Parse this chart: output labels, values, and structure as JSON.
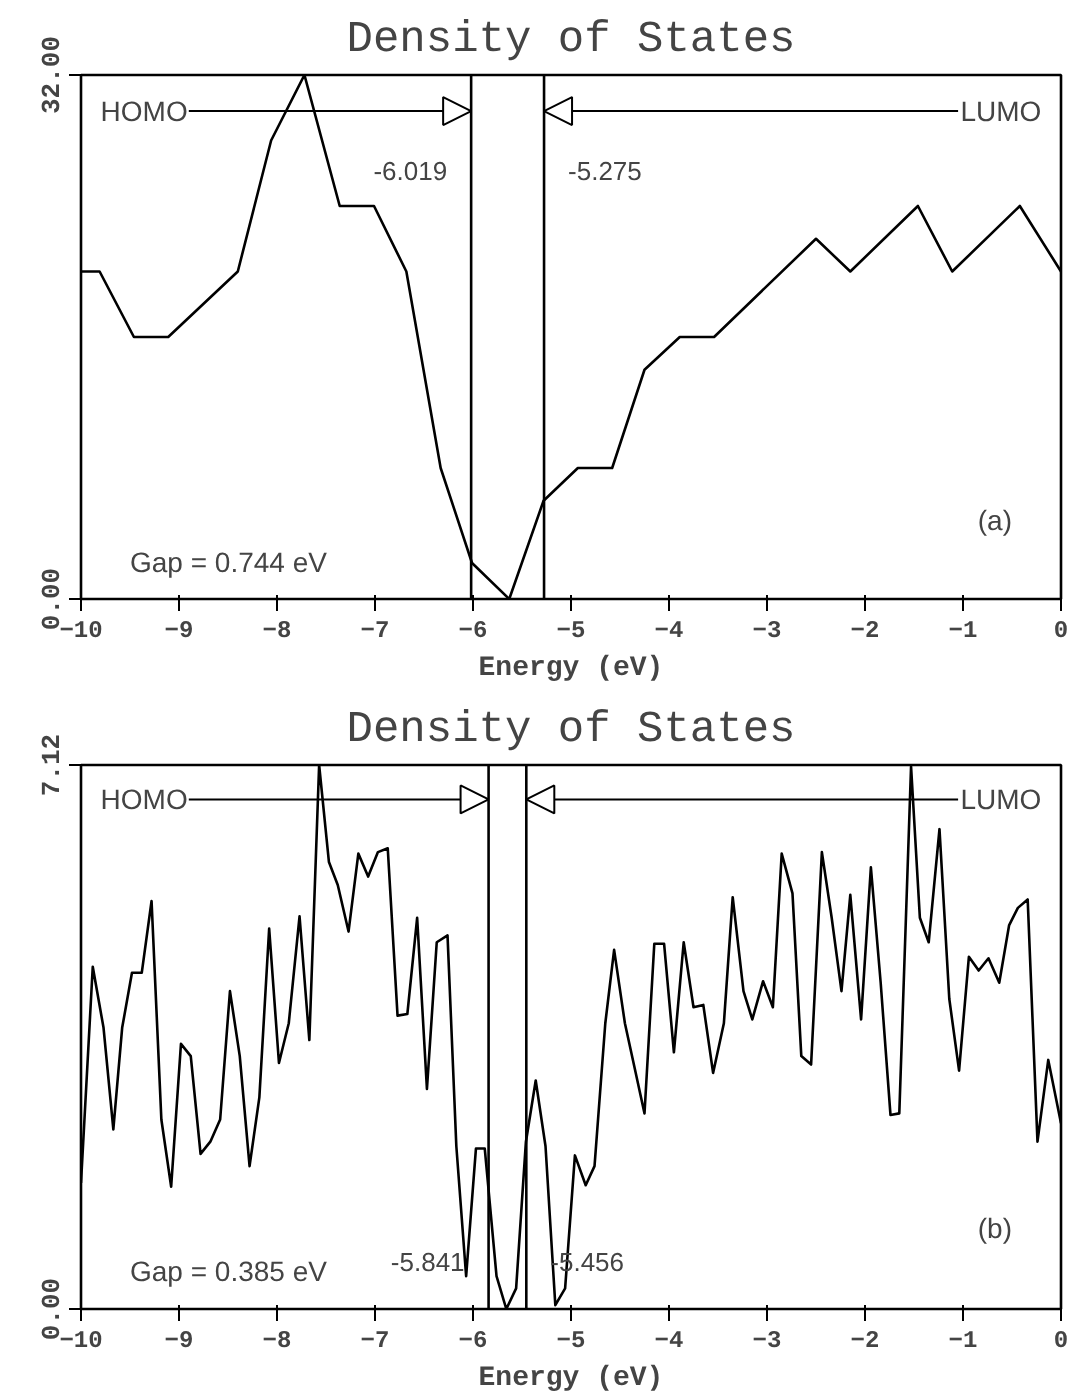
{
  "chart_data": [
    {
      "type": "line",
      "title": "Density of States",
      "xlabel": "Energy (eV)",
      "x": [
        -10,
        -9.81,
        -9.46,
        -9.11,
        -8.4,
        -8.06,
        -7.72,
        -7.36,
        -7.01,
        -6.68,
        -6.33,
        -6.01,
        -5.63,
        -5.28,
        -4.93,
        -4.58,
        -4.25,
        -3.89,
        -3.54,
        -2.5,
        -2.15,
        -1.46,
        -1.11,
        -0.42,
        0
      ],
      "series": [
        {
          "color": "#000000",
          "values": [
            20,
            20,
            16,
            16,
            20,
            28,
            32,
            24,
            24,
            20,
            8,
            2.2,
            0,
            6,
            8,
            8,
            14,
            16,
            16,
            22,
            20,
            24,
            20,
            24,
            20
          ]
        }
      ],
      "xlim": [
        -10,
        0
      ],
      "xticks": [
        -10,
        -9,
        -8,
        -7,
        -6,
        -5,
        -4,
        -3,
        -2,
        -1,
        0
      ],
      "ylim": [
        0,
        32
      ],
      "yticks": [
        {
          "value": 0,
          "label": "0.00"
        },
        {
          "value": 32,
          "label": "32.00"
        }
      ],
      "ref_lines": [
        {
          "axis": "x",
          "value": -6.019,
          "label": "-6.019"
        },
        {
          "axis": "x",
          "value": -5.275,
          "label": "-5.275"
        }
      ],
      "annotations": [
        {
          "text": "HOMO",
          "x": -6.019,
          "y": 29.8
        },
        {
          "text": "LUMO",
          "x": -5.275,
          "y": 29.8
        },
        "Gap = 0.744 eV",
        "(a)"
      ],
      "grid": false,
      "marker": "none",
      "line_style": "solid"
    },
    {
      "type": "line",
      "title": "Density of States",
      "xlabel": "Energy (eV)",
      "x": [
        -10,
        -9.88,
        -9.77,
        -9.67,
        -9.58,
        -9.48,
        -9.38,
        -9.28,
        -9.18,
        -9.08,
        -8.98,
        -8.88,
        -8.78,
        -8.68,
        -8.58,
        -8.48,
        -8.38,
        -8.28,
        -8.18,
        -8.08,
        -7.98,
        -7.88,
        -7.77,
        -7.67,
        -7.57,
        -7.47,
        -7.38,
        -7.27,
        -7.17,
        -7.07,
        -6.97,
        -6.87,
        -6.77,
        -6.67,
        -6.57,
        -6.47,
        -6.37,
        -6.26,
        -6.17,
        -6.07,
        -5.97,
        -5.88,
        -5.76,
        -5.66,
        -5.56,
        -5.46,
        -5.36,
        -5.26,
        -5.16,
        -5.06,
        -4.96,
        -4.85,
        -4.76,
        -4.65,
        -4.56,
        -4.45,
        -4.35,
        -4.25,
        -4.15,
        -4.05,
        -3.95,
        -3.85,
        -3.75,
        -3.65,
        -3.55,
        -3.44,
        -3.35,
        -3.24,
        -3.15,
        -3.04,
        -2.94,
        -2.85,
        -2.74,
        -2.65,
        -2.55,
        -2.44,
        -2.34,
        -2.24,
        -2.15,
        -2.04,
        -1.94,
        -1.84,
        -1.74,
        -1.65,
        -1.53,
        -1.44,
        -1.35,
        -1.24,
        -1.14,
        -1.04,
        -0.94,
        -0.84,
        -0.74,
        -0.63,
        -0.53,
        -0.44,
        -0.34,
        -0.24,
        -0.13,
        0
      ],
      "series": [
        {
          "color": "#000000",
          "values": [
            1.65,
            4.48,
            3.68,
            2.35,
            3.68,
            4.4,
            4.4,
            5.34,
            2.48,
            1.6,
            3.47,
            3.31,
            2.03,
            2.19,
            2.48,
            4.16,
            3.31,
            1.87,
            2.77,
            4.98,
            3.22,
            3.74,
            5.14,
            3.52,
            7.12,
            5.85,
            5.55,
            4.94,
            5.96,
            5.66,
            5.98,
            6.03,
            3.84,
            3.86,
            5.12,
            2.88,
            4.8,
            4.89,
            2.13,
            0.43,
            2.1,
            2.1,
            0.43,
            0,
            0.27,
            2.19,
            2.99,
            2.13,
            0.05,
            0.27,
            2.01,
            1.62,
            1.87,
            3.74,
            4.7,
            3.74,
            3.15,
            2.56,
            4.78,
            4.78,
            3.36,
            4.8,
            3.95,
            3.98,
            3.09,
            3.74,
            5.39,
            4.16,
            3.79,
            4.29,
            3.95,
            5.96,
            5.44,
            3.31,
            3.2,
            5.98,
            5.12,
            4.16,
            5.42,
            3.79,
            5.78,
            4.27,
            2.54,
            2.56,
            7.1,
            5.12,
            4.8,
            6.28,
            4.06,
            3.12,
            4.61,
            4.43,
            4.59,
            4.27,
            5.02,
            5.25,
            5.36,
            2.19,
            3.26,
            2.43
          ]
        }
      ],
      "xlim": [
        -10,
        0
      ],
      "xticks": [
        -10,
        -9,
        -8,
        -7,
        -6,
        -5,
        -4,
        -3,
        -2,
        -1,
        0
      ],
      "ylim": [
        0,
        7.12
      ],
      "yticks": [
        {
          "value": 0,
          "label": "0.00"
        },
        {
          "value": 7.12,
          "label": "7.12"
        }
      ],
      "ref_lines": [
        {
          "axis": "x",
          "value": -5.841,
          "label": "-5.841"
        },
        {
          "axis": "x",
          "value": -5.456,
          "label": "-5.456"
        }
      ],
      "annotations": [
        {
          "text": "HOMO",
          "x": -5.841,
          "y": 6.67
        },
        {
          "text": "LUMO",
          "x": -5.456,
          "y": 6.67
        },
        "Gap = 0.385 eV",
        "(b)"
      ],
      "grid": false,
      "marker": "none",
      "line_style": "solid"
    }
  ]
}
